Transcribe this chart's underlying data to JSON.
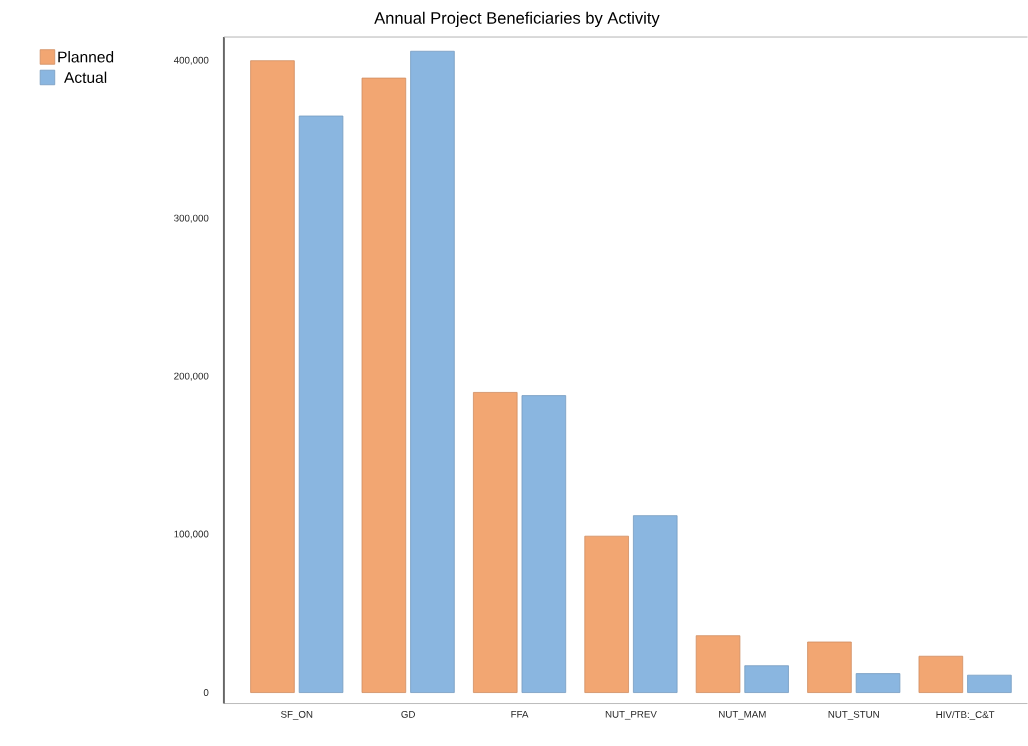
{
  "chart_data": {
    "type": "bar",
    "title": "Annual Project Beneficiaries by Activity",
    "categories": [
      "SF_ON",
      "GD",
      "FFA",
      "NUT_PREV",
      "NUT_MAM",
      "NUT_STUN",
      "HIV/TB:_C&T"
    ],
    "series": [
      {
        "name": "Planned",
        "color": "#f2a672",
        "values": [
          400000,
          389000,
          190000,
          99000,
          36000,
          32000,
          23000
        ]
      },
      {
        "name": "Actual",
        "color": "#8ab6e0",
        "values": [
          365000,
          406000,
          188000,
          112000,
          17000,
          12000,
          11000
        ]
      }
    ],
    "ylim": [
      -7000,
      415000
    ],
    "yticks": [
      0,
      {
        "value": 100000,
        "label": "100,000"
      },
      {
        "value": 200000,
        "label": "200,000"
      },
      {
        "value": 300000,
        "label": "300,000"
      },
      {
        "value": 400000,
        "label": "400,000"
      }
    ],
    "grid": false,
    "legend": "left"
  }
}
